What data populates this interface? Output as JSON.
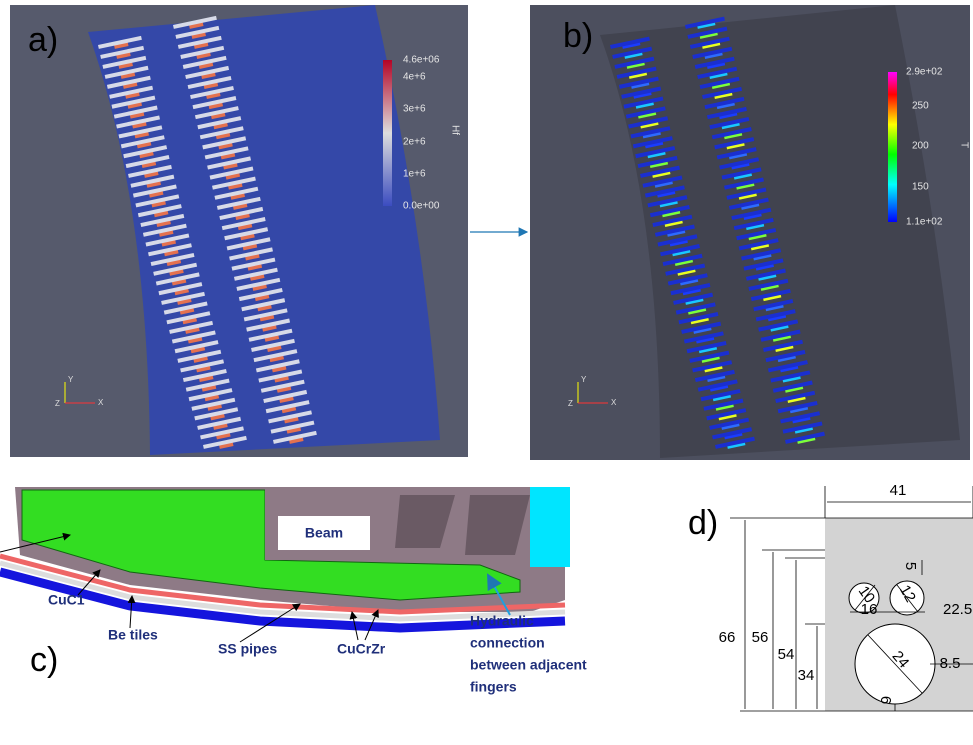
{
  "panels": {
    "a": {
      "label": "a)",
      "colorbar": {
        "title": "Hf",
        "ticks": [
          "4.6e+06",
          "4e+6",
          "3e+6",
          "2e+6",
          "1e+6",
          "0.0e+00"
        ]
      },
      "axes": [
        "Y",
        "Z",
        "X"
      ]
    },
    "b": {
      "label": "b)",
      "colorbar": {
        "title": "T",
        "ticks": [
          "2.9e+02",
          "250",
          "200",
          "150",
          "1.1e+02"
        ]
      },
      "axes": [
        "Y",
        "Z",
        "X"
      ]
    },
    "c": {
      "label": "c)",
      "beam": "Beam",
      "callouts": [
        "CuC1",
        "Be tiles",
        "SS pipes",
        "CuCrZr"
      ],
      "hydraulic": [
        "Hydraulic",
        "connection",
        "between adjacent",
        "fingers"
      ]
    },
    "d": {
      "label": "d)",
      "dimensions": [
        "41",
        "5",
        "10",
        "12",
        "16",
        "22.5",
        "66",
        "56",
        "54",
        "34",
        "24",
        "8.5",
        "6"
      ]
    }
  }
}
